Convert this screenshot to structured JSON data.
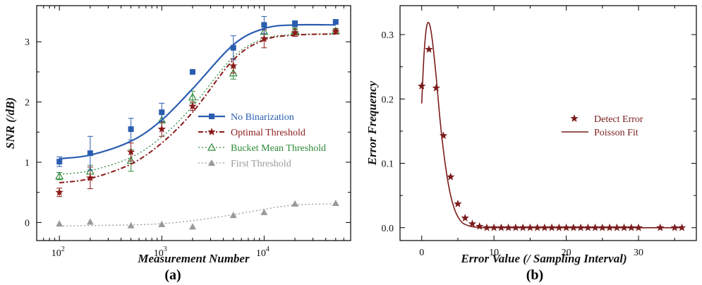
{
  "chart_data": [
    {
      "type": "line",
      "panel_label": "(a)",
      "xlabel": "Measurement Number",
      "ylabel": "SNR (/dB)",
      "x_scale": "log",
      "xlim": [
        60,
        70000
      ],
      "ylim": [
        -0.3,
        3.6
      ],
      "x_ticks": [
        100,
        1000,
        10000
      ],
      "x_tick_labels": [
        {
          "base": "10",
          "exp": "2"
        },
        {
          "base": "10",
          "exp": "3"
        },
        {
          "base": "10",
          "exp": "4"
        }
      ],
      "y_ticks": [
        0,
        1,
        2,
        3
      ],
      "y_tick_labels": [
        "0",
        "1",
        "2",
        "3"
      ],
      "legend_position": "center-right",
      "x": [
        100,
        200,
        500,
        1000,
        2000,
        5000,
        10000,
        20000,
        50000
      ],
      "series": [
        {
          "name": "No Binarization",
          "color": "#2a5db0",
          "marker": "square",
          "line_style": "solid",
          "points": [
            1.01,
            1.15,
            1.55,
            1.83,
            2.5,
            2.9,
            3.28,
            3.3,
            3.33
          ],
          "errors": [
            0.08,
            0.28,
            0.18,
            0.15,
            0.0,
            0.2,
            0.14,
            0.05,
            0.0
          ],
          "fit": [
            1.06,
            1.12,
            1.35,
            1.7,
            2.22,
            2.95,
            3.22,
            3.28,
            3.28
          ]
        },
        {
          "name": "Optimal Threshold",
          "color": "#8b1a1a",
          "marker": "star",
          "line_style": "dashdot",
          "points": [
            0.5,
            0.74,
            1.17,
            1.55,
            1.93,
            2.6,
            3.05,
            3.15,
            3.17
          ],
          "errors": [
            0.07,
            0.18,
            0.15,
            0.12,
            0.07,
            0.12,
            0.15,
            0.06,
            0.04
          ],
          "fit": [
            0.66,
            0.73,
            0.97,
            1.32,
            1.83,
            2.7,
            3.03,
            3.11,
            3.13
          ]
        },
        {
          "name": "Bucket Mean Threshold",
          "color": "#2e8b3a",
          "marker": "triangle-open",
          "line_style": "dotted",
          "points": [
            0.77,
            0.85,
            1.03,
            1.7,
            2.08,
            2.48,
            3.17,
            3.18,
            3.18
          ],
          "errors": [
            0.06,
            0.1,
            0.18,
            0.14,
            0.1,
            0.1,
            0.1,
            0.05,
            0.04
          ],
          "fit": [
            0.8,
            0.86,
            1.08,
            1.42,
            1.93,
            2.75,
            3.05,
            3.12,
            3.13
          ]
        },
        {
          "name": "First Threshold",
          "color": "#9a9a9a",
          "marker": "triangle",
          "line_style": "dotted",
          "points": [
            -0.02,
            0.01,
            -0.05,
            -0.03,
            -0.07,
            0.12,
            0.17,
            0.31,
            0.32
          ],
          "errors": [
            0,
            0,
            0,
            0,
            0,
            0,
            0,
            0,
            0
          ],
          "fit": [
            -0.06,
            -0.05,
            -0.04,
            -0.02,
            0.03,
            0.13,
            0.22,
            0.29,
            0.31
          ]
        }
      ]
    },
    {
      "type": "scatter",
      "panel_label": "(b)",
      "xlabel": "Error Value (/ Sampling Interval)",
      "ylabel": "Error Frequency",
      "xlim": [
        -3,
        38
      ],
      "ylim": [
        -0.02,
        0.345
      ],
      "x_ticks": [
        0,
        10,
        20,
        30
      ],
      "x_tick_labels": [
        "0",
        "10",
        "20",
        "30"
      ],
      "y_ticks": [
        0.0,
        0.1,
        0.2,
        0.3
      ],
      "y_tick_labels": [
        "0.0",
        "0.1",
        "0.2",
        "0.3"
      ],
      "legend_position": "center-right",
      "color": "#7a1c1c",
      "series": [
        {
          "name": "Detect Error",
          "marker": "star",
          "x": [
            0,
            1,
            2,
            3,
            4,
            5,
            6,
            7,
            8,
            9,
            10,
            11,
            12,
            13,
            14,
            15,
            16,
            17,
            18,
            19,
            20,
            21,
            22,
            23,
            24,
            25,
            26,
            27,
            28,
            29,
            30,
            33,
            35,
            36
          ],
          "y": [
            0.22,
            0.277,
            0.217,
            0.143,
            0.079,
            0.037,
            0.015,
            0.006,
            0.002,
            0,
            0,
            0,
            0,
            0,
            0,
            0,
            0,
            0,
            0,
            0,
            0,
            0,
            0,
            0,
            0,
            0,
            0,
            0,
            0,
            0,
            0,
            0,
            0,
            0
          ]
        },
        {
          "name": "Poisson Fit",
          "line_style": "solid",
          "x": [
            0,
            0.25,
            0.5,
            0.75,
            1.0,
            1.25,
            1.5,
            2.0,
            2.5,
            3.0,
            3.5,
            4.0,
            4.5,
            5.0,
            5.5,
            6.0,
            7.0,
            8.0,
            9.0,
            12.0,
            20.0,
            30.0,
            36.0
          ],
          "y": [
            0.193,
            0.255,
            0.296,
            0.316,
            0.318,
            0.308,
            0.288,
            0.235,
            0.172,
            0.12,
            0.08,
            0.05,
            0.03,
            0.017,
            0.009,
            0.005,
            0.0015,
            0.0004,
            0.0001,
            0,
            0,
            0,
            0
          ]
        }
      ]
    }
  ]
}
